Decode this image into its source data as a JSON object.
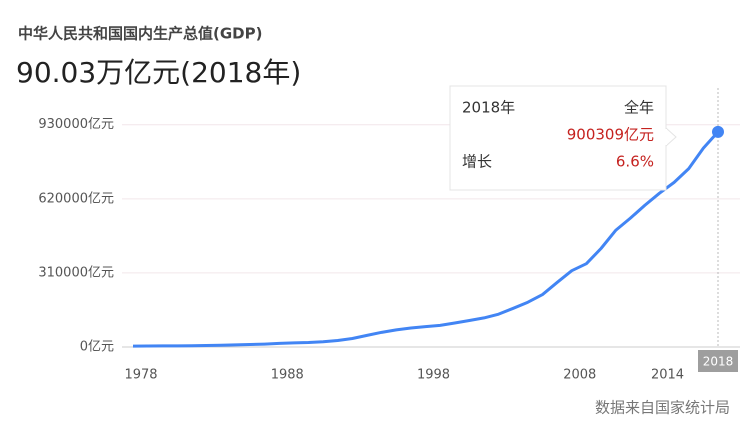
{
  "chart_data": {
    "type": "line",
    "title": "中华人民共和国国内生产总值(GDP)",
    "subtitle": "90.03万亿元(2018年)",
    "source": "数据来自国家统计局",
    "x": [
      1978,
      1979,
      1980,
      1981,
      1982,
      1983,
      1984,
      1985,
      1986,
      1987,
      1988,
      1989,
      1990,
      1991,
      1992,
      1993,
      1994,
      1995,
      1996,
      1997,
      1998,
      1999,
      2000,
      2001,
      2002,
      2003,
      2004,
      2005,
      2006,
      2007,
      2008,
      2009,
      2010,
      2011,
      2012,
      2013,
      2014,
      2015,
      2016,
      2017,
      2018
    ],
    "series": [
      {
        "name": "GDP",
        "color": "#4285f4",
        "values": [
          3679,
          4101,
          4588,
          4936,
          5373,
          6021,
          7279,
          9099,
          10376,
          12175,
          15180,
          17180,
          18873,
          22006,
          27195,
          35673,
          48638,
          61340,
          71814,
          79715,
          85196,
          90564,
          100280,
          110863,
          121717,
          137422,
          161840,
          187319,
          219439,
          270092,
          319245,
          348518,
          412119,
          487940,
          538580,
          592963,
          643563,
          688858,
          746395,
          832036,
          900309
        ]
      }
    ],
    "xlim": [
      1978,
      2018
    ],
    "xticks": [
      1978,
      1988,
      1998,
      2008,
      2014,
      2018
    ],
    "ylim": [
      0,
      1000000
    ],
    "yticks": [
      {
        "value": 0,
        "label": "0亿元"
      },
      {
        "value": 310000,
        "label": "310000亿元"
      },
      {
        "value": 620000,
        "label": "620000亿元"
      },
      {
        "value": 930000,
        "label": "930000亿元"
      }
    ],
    "grid": true,
    "tooltip": {
      "period": "2018年",
      "label": "全年",
      "value_label": "900309亿元",
      "growth_label": "增长",
      "growth": "6.6%"
    }
  }
}
